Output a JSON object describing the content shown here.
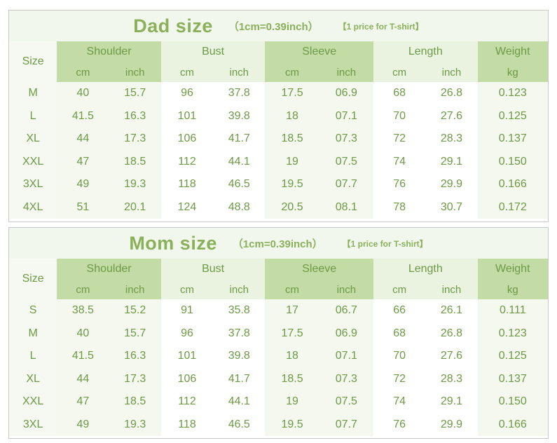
{
  "tables": [
    {
      "id": "dad",
      "title": "Dad size",
      "note": "（1cm=0.39inch）",
      "tag": "【1 price for T-shirt】",
      "headers": {
        "size": "Size",
        "groups": [
          "Shoulder",
          "Bust",
          "Sleeve",
          "Length",
          "Weight"
        ],
        "units": [
          "cm",
          "inch",
          "cm",
          "inch",
          "cm",
          "inch",
          "cm",
          "inch",
          "kg"
        ]
      },
      "rows": [
        [
          "M",
          "40",
          "15.7",
          "96",
          "37.8",
          "17.5",
          "06.9",
          "68",
          "26.8",
          "0.123"
        ],
        [
          "L",
          "41.5",
          "16.3",
          "101",
          "39.8",
          "18",
          "07.1",
          "70",
          "27.6",
          "0.125"
        ],
        [
          "XL",
          "44",
          "17.3",
          "106",
          "41.7",
          "18.5",
          "07.3",
          "72",
          "28.3",
          "0.137"
        ],
        [
          "XXL",
          "47",
          "18.5",
          "112",
          "44.1",
          "19",
          "07.5",
          "74",
          "29.1",
          "0.150"
        ],
        [
          "3XL",
          "49",
          "19.3",
          "118",
          "46.5",
          "19.5",
          "07.7",
          "76",
          "29.9",
          "0.166"
        ],
        [
          "4XL",
          "51",
          "20.1",
          "124",
          "48.8",
          "20.5",
          "08.1",
          "78",
          "30.7",
          "0.172"
        ]
      ]
    },
    {
      "id": "mom",
      "title": "Mom size",
      "note": "（1cm=0.39inch）",
      "tag": "【1 price for T-shirt】",
      "headers": {
        "size": "Size",
        "groups": [
          "Shoulder",
          "Bust",
          "Sleeve",
          "Length",
          "Weight"
        ],
        "units": [
          "cm",
          "inch",
          "cm",
          "inch",
          "cm",
          "inch",
          "cm",
          "inch",
          "kg"
        ]
      },
      "rows": [
        [
          "S",
          "38.5",
          "15.2",
          "91",
          "35.8",
          "17",
          "06.7",
          "66",
          "26.1",
          "0.111"
        ],
        [
          "M",
          "40",
          "15.7",
          "96",
          "37.8",
          "17.5",
          "06.9",
          "68",
          "26.8",
          "0.123"
        ],
        [
          "L",
          "41.5",
          "16.3",
          "101",
          "39.8",
          "18",
          "07.1",
          "70",
          "27.6",
          "0.125"
        ],
        [
          "XL",
          "44",
          "17.3",
          "106",
          "41.7",
          "18.5",
          "07.3",
          "72",
          "28.3",
          "0.137"
        ],
        [
          "XXL",
          "47",
          "18.5",
          "112",
          "44.1",
          "19",
          "07.5",
          "74",
          "29.1",
          "0.150"
        ],
        [
          "3XL",
          "49",
          "19.3",
          "118",
          "46.5",
          "19.5",
          "07.7",
          "76",
          "29.9",
          "0.166"
        ]
      ]
    }
  ]
}
